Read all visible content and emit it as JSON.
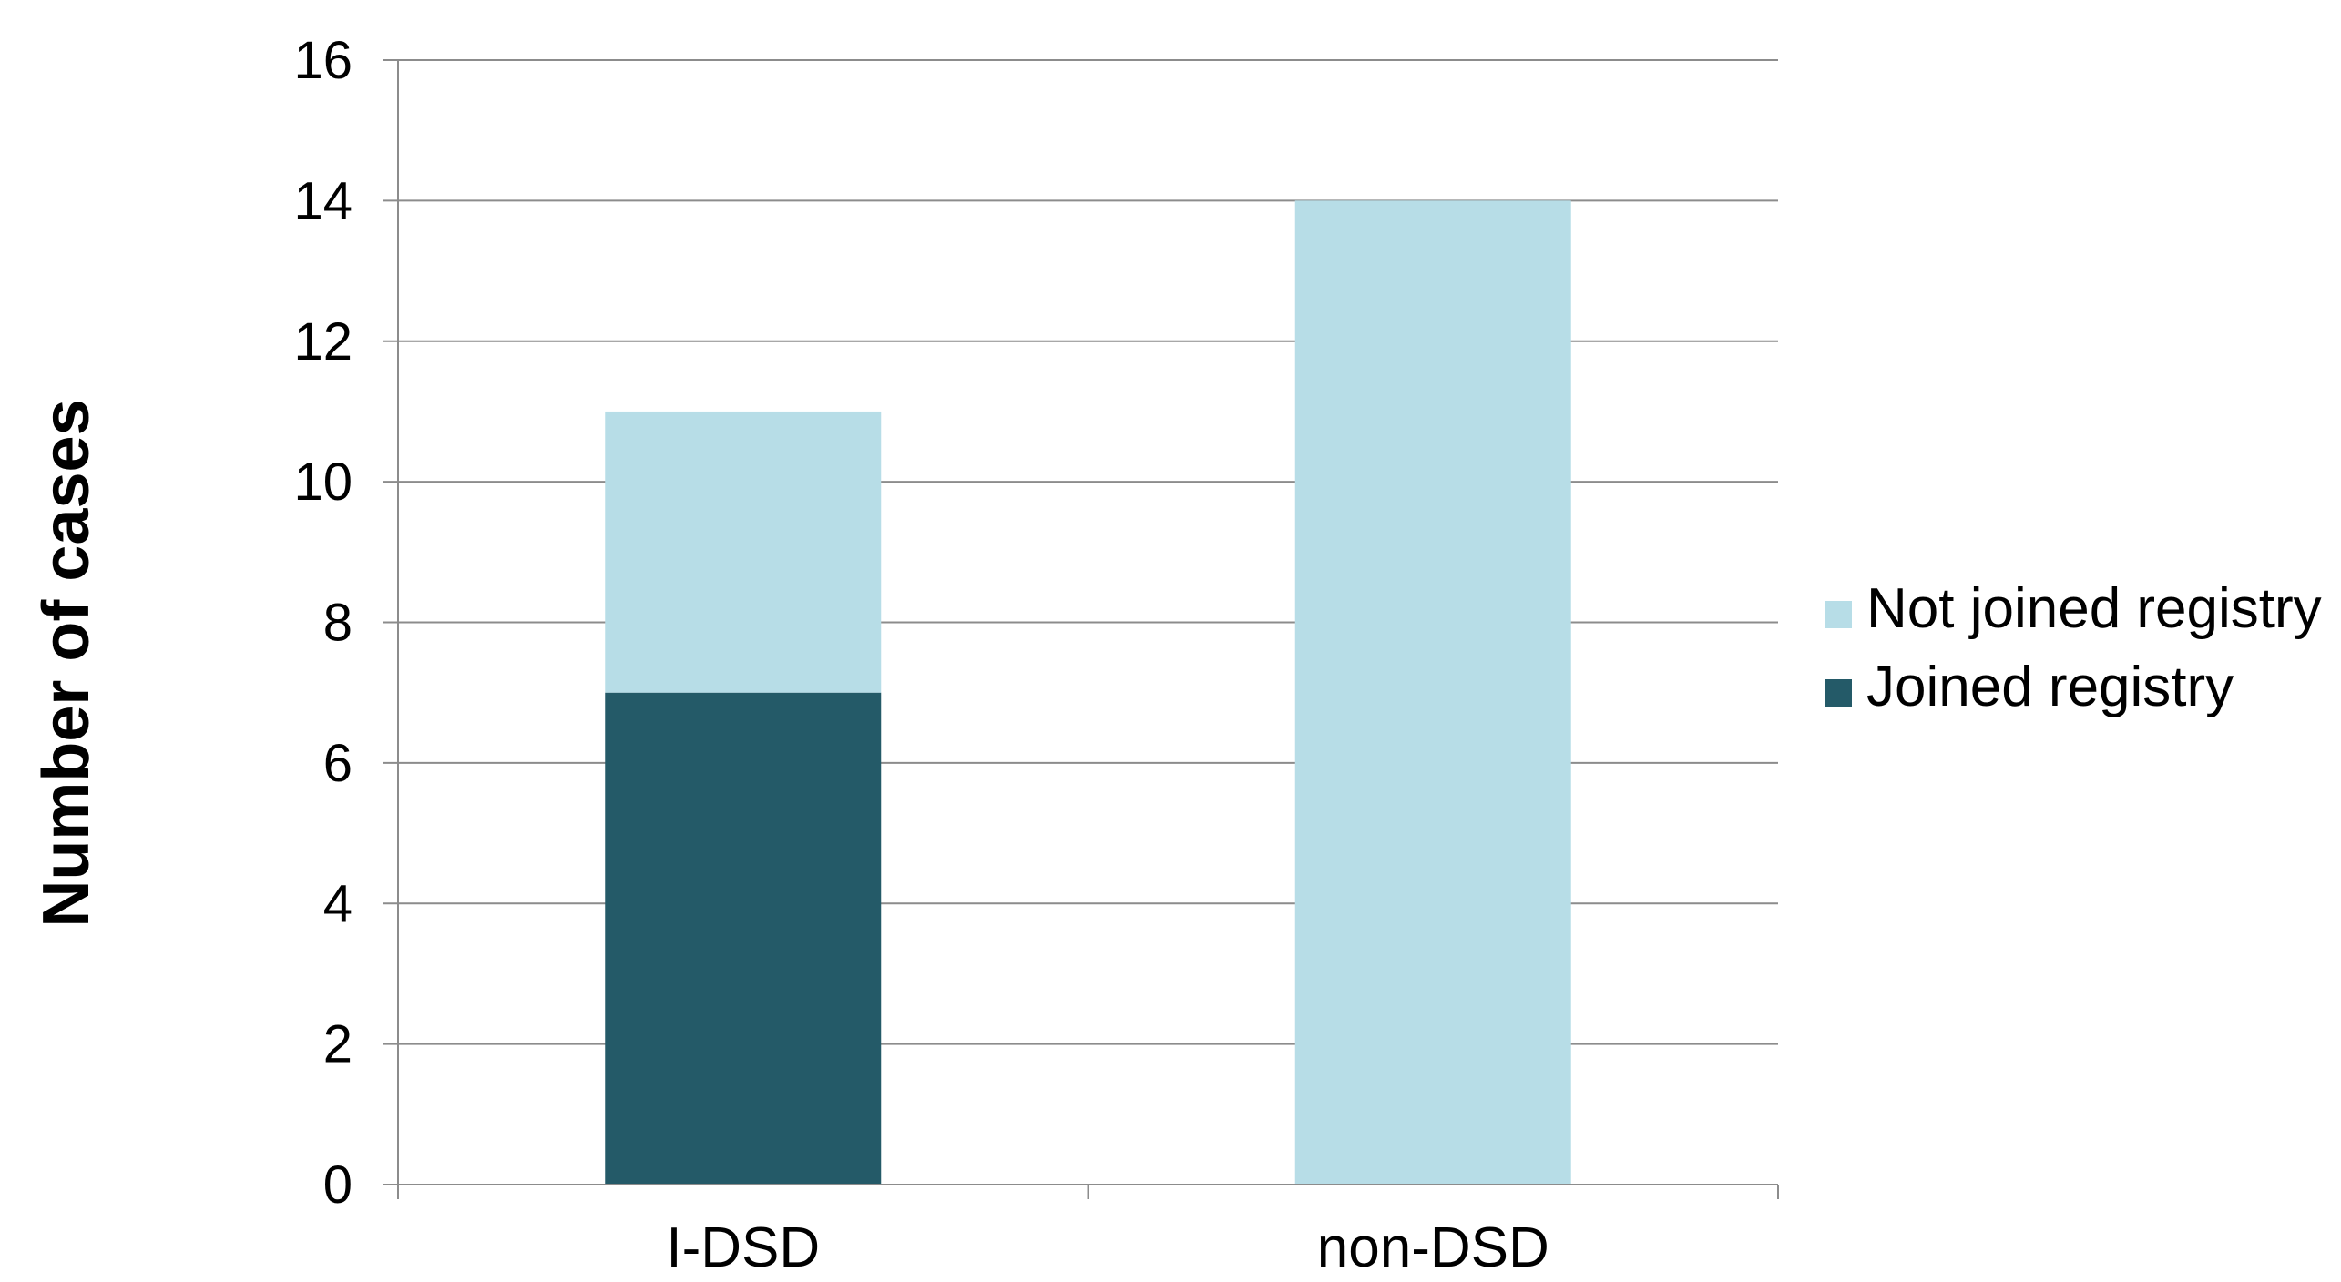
{
  "chart_data": {
    "type": "bar",
    "stacked": true,
    "categories": [
      "I-DSD",
      "non-DSD"
    ],
    "series": [
      {
        "name": "Joined registry",
        "values": [
          7,
          0
        ],
        "color": "#245a68"
      },
      {
        "name": "Not joined registry",
        "values": [
          4,
          14
        ],
        "color": "#b7dde7"
      }
    ],
    "ylabel": "Number of cases",
    "xlabel": "",
    "ylim": [
      0,
      16
    ],
    "yticks": [
      0,
      2,
      4,
      6,
      8,
      10,
      12,
      14,
      16
    ],
    "grid": true,
    "legend_position": "right",
    "legend_order": [
      "Not joined registry",
      "Joined registry"
    ]
  }
}
